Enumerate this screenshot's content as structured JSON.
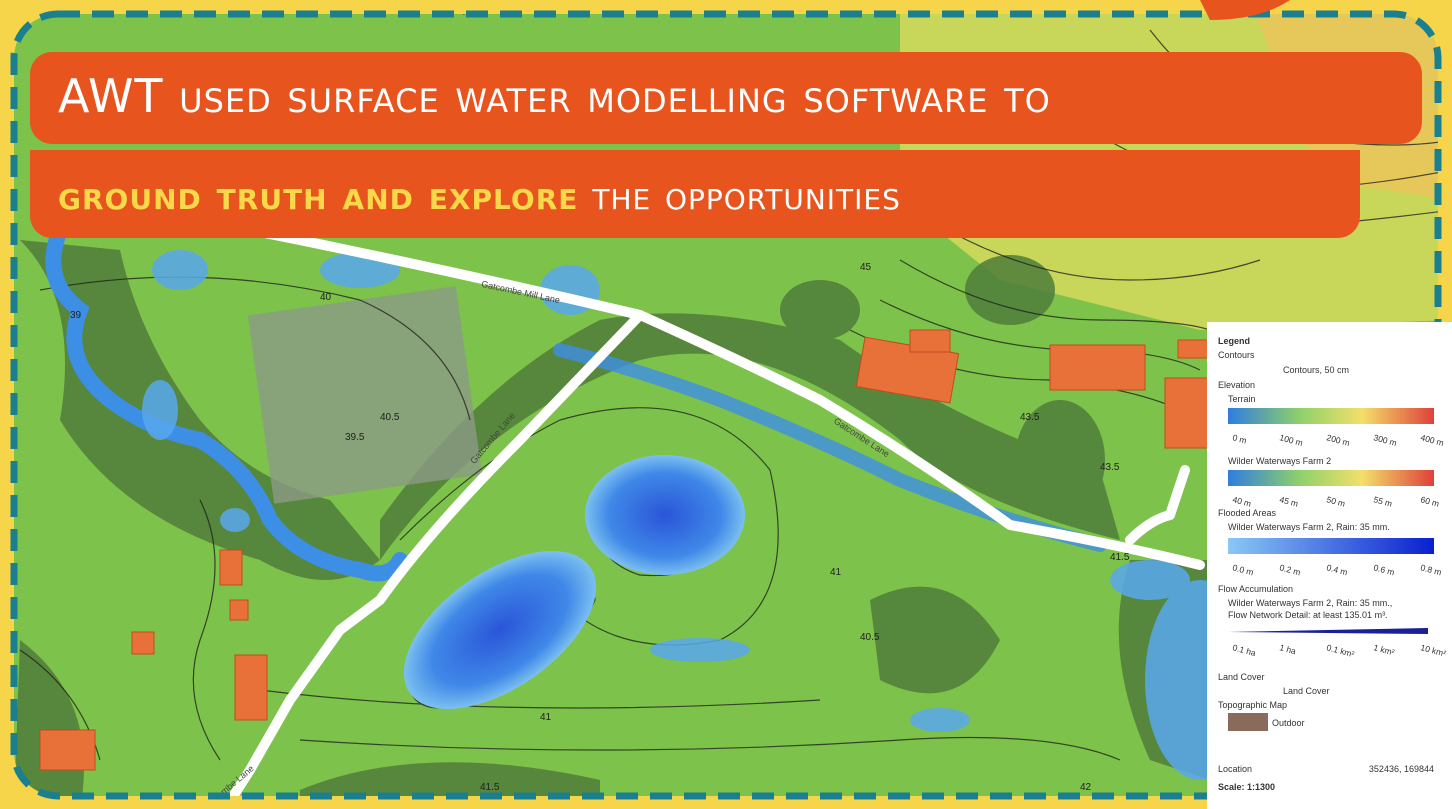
{
  "banner": {
    "line1": "AWT used surface water modelling software to",
    "highlight": "ground truth and explore",
    "line2_rest": "the opportunities"
  },
  "map": {
    "road_labels": [
      "Gatcombe Mill Lane",
      "Gatcombe Lane",
      "Gatcombe Lane",
      "Gatcombe Lane"
    ],
    "contour_labels": [
      "39",
      "40",
      "40.5",
      "39.5",
      "41",
      "41.5",
      "43.5",
      "45",
      "40.5",
      "41",
      "42",
      "41.5",
      "45",
      "43.5"
    ]
  },
  "legend": {
    "title": "Legend",
    "contours_heading": "Contours",
    "contours_item": "Contours, 50 cm",
    "elevation_heading": "Elevation",
    "terrain_heading": "Terrain",
    "terrain_ticks": [
      "0 m",
      "100 m",
      "200 m",
      "300 m",
      "400 m"
    ],
    "farm_heading": "Wilder Waterways Farm 2",
    "farm_ticks": [
      "40 m",
      "45 m",
      "50 m",
      "55 m",
      "60 m"
    ],
    "flooded_heading": "Flooded Areas",
    "flooded_item": "Wilder Waterways Farm 2, Rain: 35 mm.",
    "flooded_ticks": [
      "0.0 m",
      "0.2 m",
      "0.4 m",
      "0.6 m",
      "0.8 m"
    ],
    "flow_heading": "Flow Accumulation",
    "flow_item_1": "Wilder Waterways Farm 2, Rain: 35 mm.,",
    "flow_item_2": "Flow Network Detail: at least 135.01 m³.",
    "flow_ticks": [
      "0.1 ha",
      "1 ha",
      "0.1 km²",
      "1 km²",
      "10 km²"
    ],
    "land_cover_heading": "Land Cover",
    "land_cover_item": "Land Cover",
    "topo_heading": "Topographic Map",
    "topo_item": "Outdoor",
    "location_label": "Location",
    "location_value": "352436, 169844",
    "scale": "Scale: 1:1300"
  }
}
